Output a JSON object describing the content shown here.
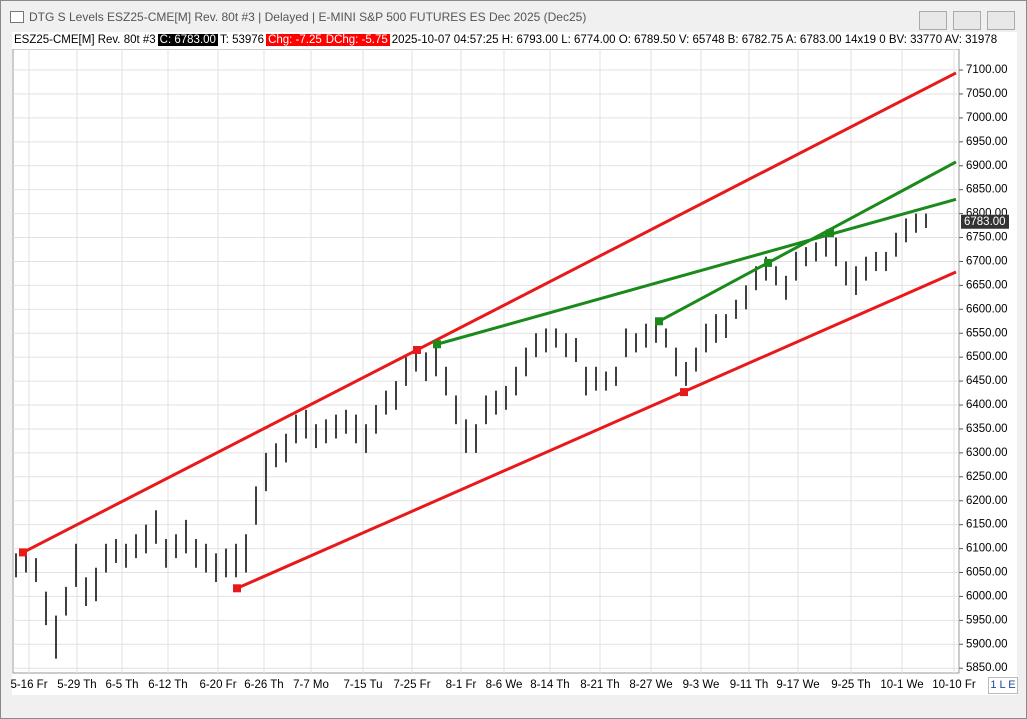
{
  "window": {
    "title": "DTG S Levels ESZ25-CME[M]  Rev. 80t #3 | Delayed | E-MINI S&P 500 FUTURES ES Dec 2025 (Dec25)",
    "info": [
      {
        "text": "ESZ25-CME[M]  Rev. 80t #3",
        "box": "none"
      },
      {
        "text": "C: 6783.00",
        "box": "black"
      },
      {
        "text": "T: 53976",
        "box": "none"
      },
      {
        "text": "Chg: -7.25",
        "box": "red"
      },
      {
        "text": "DChg: -5.75",
        "box": "red"
      },
      {
        "text": "2025-10-07 04:57:25 H: 6793.00 L: 6774.00 O: 6789.50 V: 65748 B: 6782.75 A: 6783.00 14x19 0 BV: 33770 AV: 31978",
        "box": "none"
      }
    ],
    "status": "1 L E"
  },
  "chart_data": {
    "type": "range-bar",
    "color": "#000000",
    "grid": true,
    "high": [
      6090,
      6100,
      6080,
      6010,
      5960,
      6020,
      6110,
      6040,
      6060,
      6110,
      6120,
      6110,
      6130,
      6150,
      6180,
      6120,
      6130,
      6160,
      6120,
      6110,
      6090,
      6100,
      6110,
      6130,
      6230,
      6300,
      6320,
      6340,
      6380,
      6390,
      6360,
      6370,
      6380,
      6390,
      6380,
      6360,
      6400,
      6430,
      6450,
      6500,
      6510,
      6510,
      6530,
      6480,
      6420,
      6370,
      6360,
      6420,
      6430,
      6440,
      6480,
      6520,
      6550,
      6560,
      6560,
      6550,
      6540,
      6480,
      6480,
      6470,
      6480,
      6560,
      6550,
      6570,
      6580,
      6560,
      6520,
      6490,
      6520,
      6570,
      6590,
      6590,
      6620,
      6650,
      6690,
      6710,
      6690,
      6670,
      6720,
      6730,
      6740,
      6760,
      6750,
      6700,
      6690,
      6710,
      6720,
      6720,
      6760,
      6790,
      6800,
      6800
    ],
    "low": [
      6040,
      6050,
      6030,
      5940,
      5870,
      5960,
      6020,
      5980,
      5990,
      6050,
      6070,
      6060,
      6080,
      6090,
      6110,
      6060,
      6080,
      6090,
      6060,
      6050,
      6030,
      6040,
      6040,
      6050,
      6150,
      6220,
      6270,
      6280,
      6320,
      6330,
      6310,
      6320,
      6330,
      6340,
      6320,
      6300,
      6340,
      6380,
      6390,
      6440,
      6470,
      6450,
      6460,
      6420,
      6360,
      6300,
      6300,
      6360,
      6380,
      6390,
      6420,
      6460,
      6500,
      6510,
      6520,
      6500,
      6490,
      6420,
      6430,
      6430,
      6440,
      6500,
      6510,
      6520,
      6530,
      6520,
      6460,
      6440,
      6470,
      6510,
      6530,
      6540,
      6580,
      6600,
      6640,
      6660,
      6650,
      6620,
      6660,
      6690,
      6700,
      6710,
      6690,
      6650,
      6630,
      6660,
      6680,
      6680,
      6710,
      6740,
      6760,
      6770
    ],
    "xlim": [
      -0.3,
      94.3
    ],
    "ylim": [
      5840,
      7144
    ],
    "xticks": [
      {
        "value": 1.3,
        "label": "5-16 Fr"
      },
      {
        "value": 6.1,
        "label": "5-29 Th"
      },
      {
        "value": 10.6,
        "label": "6-5 Th"
      },
      {
        "value": 15.2,
        "label": "6-12 Th"
      },
      {
        "value": 20.2,
        "label": "6-20 Fr"
      },
      {
        "value": 24.8,
        "label": "6-26 Th"
      },
      {
        "value": 29.5,
        "label": "7-7 Mo"
      },
      {
        "value": 34.7,
        "label": "7-15 Tu"
      },
      {
        "value": 39.6,
        "label": "7-25 Fr"
      },
      {
        "value": 44.5,
        "label": "8-1 Fr"
      },
      {
        "value": 48.8,
        "label": "8-6 We"
      },
      {
        "value": 53.4,
        "label": "8-14 Th"
      },
      {
        "value": 58.4,
        "label": "8-21 Th"
      },
      {
        "value": 63.5,
        "label": "8-27 We"
      },
      {
        "value": 68.5,
        "label": "9-3 We"
      },
      {
        "value": 73.3,
        "label": "9-11 Th"
      },
      {
        "value": 78.2,
        "label": "9-17 We"
      },
      {
        "value": 83.5,
        "label": "9-25 Th"
      },
      {
        "value": 88.6,
        "label": "10-1 We"
      },
      {
        "value": 93.8,
        "label": "10-10 Fr"
      }
    ],
    "yticks": [
      {
        "value": 5850,
        "label": "5850.00"
      },
      {
        "value": 5900,
        "label": "5900.00"
      },
      {
        "value": 5950,
        "label": "5950.00"
      },
      {
        "value": 6000,
        "label": "6000.00"
      },
      {
        "value": 6050,
        "label": "6050.00"
      },
      {
        "value": 6100,
        "label": "6100.00"
      },
      {
        "value": 6150,
        "label": "6150.00"
      },
      {
        "value": 6200,
        "label": "6200.00"
      },
      {
        "value": 6250,
        "label": "6250.00"
      },
      {
        "value": 6300,
        "label": "6300.00"
      },
      {
        "value": 6350,
        "label": "6350.00"
      },
      {
        "value": 6400,
        "label": "6400.00"
      },
      {
        "value": 6450,
        "label": "6450.00"
      },
      {
        "value": 6500,
        "label": "6500.00"
      },
      {
        "value": 6550,
        "label": "6550.00"
      },
      {
        "value": 6600,
        "label": "6600.00"
      },
      {
        "value": 6650,
        "label": "6650.00"
      },
      {
        "value": 6700,
        "label": "6700.00"
      },
      {
        "value": 6750,
        "label": "6750.00"
      },
      {
        "value": 6800,
        "label": "6800.00"
      },
      {
        "value": 6850,
        "label": "6850.00"
      },
      {
        "value": 6900,
        "label": "6900.00"
      },
      {
        "value": 6950,
        "label": "6950.00"
      },
      {
        "value": 7000,
        "label": "7000.00"
      },
      {
        "value": 7050,
        "label": "7050.00"
      },
      {
        "value": 7100,
        "label": "7100.00"
      }
    ],
    "last_price": {
      "value": 6783,
      "label": "6783.00"
    },
    "trendlines": [
      {
        "color": "#e8191b",
        "points": [
          [
            0.7,
            6092
          ],
          [
            94,
            7094
          ]
        ],
        "markers": [
          [
            0.7,
            6092
          ],
          [
            40.1,
            6515
          ]
        ]
      },
      {
        "color": "#e8191b",
        "points": [
          [
            22.1,
            6017
          ],
          [
            94,
            6678
          ]
        ],
        "markers": [
          [
            22.1,
            6017
          ],
          [
            66.8,
            6427
          ]
        ]
      },
      {
        "color": "#1a8a1a",
        "points": [
          [
            42.1,
            6527
          ],
          [
            94,
            6830
          ]
        ],
        "markers": [
          [
            42.1,
            6527
          ],
          [
            81.4,
            6759
          ]
        ]
      },
      {
        "color": "#1a8a1a",
        "points": [
          [
            64.3,
            6575
          ],
          [
            94,
            6908
          ]
        ],
        "markers": [
          [
            64.3,
            6575
          ],
          [
            75.2,
            6697
          ]
        ]
      }
    ]
  }
}
